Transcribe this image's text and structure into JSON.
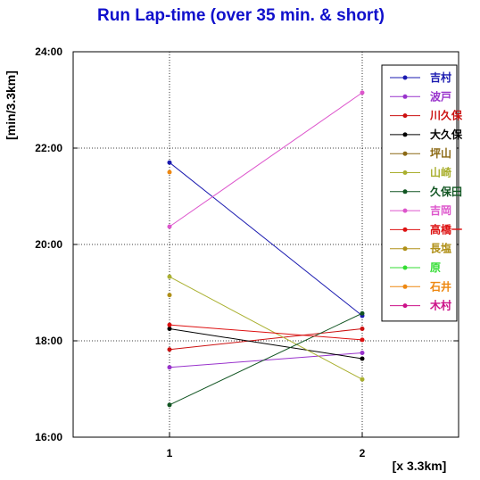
{
  "chart_data": {
    "type": "line",
    "title": "Run Lap-time (over 35 min. & short)",
    "xlabel": "[x 3.3km]",
    "ylabel": "[min/3.3km]",
    "x": [
      1,
      2
    ],
    "x_ticks": [
      "1",
      "2"
    ],
    "xlim": [
      0.5,
      2.5
    ],
    "ylim": [
      16,
      24
    ],
    "y_ticks": [
      "16:00",
      "18:00",
      "20:00",
      "22:00",
      "24:00"
    ],
    "grid": true,
    "legend_position": "top-right",
    "series": [
      {
        "name": "吉村",
        "color": "#1a1ab0",
        "values": [
          21.7,
          18.52
        ]
      },
      {
        "name": "波戸",
        "color": "#9933cc",
        "values": [
          17.45,
          17.75
        ]
      },
      {
        "name": "川久保",
        "color": "#cc1111",
        "values": [
          17.82,
          18.25
        ]
      },
      {
        "name": "大久保",
        "color": "#000000",
        "values": [
          18.25,
          17.63
        ]
      },
      {
        "name": "坪山",
        "color": "#8b6914",
        "values": [
          null,
          null
        ]
      },
      {
        "name": "山崎",
        "color": "#aab030",
        "values": [
          19.33,
          17.2
        ]
      },
      {
        "name": "久保田",
        "color": "#115522",
        "values": [
          16.67,
          18.57
        ]
      },
      {
        "name": "吉岡",
        "color": "#dd55cc",
        "values": [
          20.37,
          23.15
        ]
      },
      {
        "name": "高橋一",
        "color": "#dd1111",
        "values": [
          18.33,
          18.02
        ]
      },
      {
        "name": "長塩",
        "color": "#b09018",
        "values": [
          18.95,
          null
        ]
      },
      {
        "name": "原",
        "color": "#33dd33",
        "values": [
          null,
          null
        ]
      },
      {
        "name": "石井",
        "color": "#ee8811",
        "values": [
          21.5,
          null
        ]
      },
      {
        "name": "木村",
        "color": "#cc1188",
        "values": [
          null,
          null
        ]
      }
    ]
  }
}
